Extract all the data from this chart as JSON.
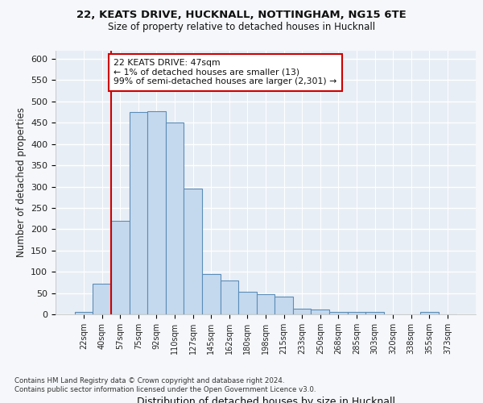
{
  "title1": "22, KEATS DRIVE, HUCKNALL, NOTTINGHAM, NG15 6TE",
  "title2": "Size of property relative to detached houses in Hucknall",
  "xlabel": "Distribution of detached houses by size in Hucknall",
  "ylabel": "Number of detached properties",
  "categories": [
    "22sqm",
    "40sqm",
    "57sqm",
    "75sqm",
    "92sqm",
    "110sqm",
    "127sqm",
    "145sqm",
    "162sqm",
    "180sqm",
    "198sqm",
    "215sqm",
    "233sqm",
    "250sqm",
    "268sqm",
    "285sqm",
    "303sqm",
    "320sqm",
    "338sqm",
    "355sqm",
    "373sqm"
  ],
  "values": [
    5,
    72,
    220,
    475,
    477,
    450,
    295,
    95,
    80,
    53,
    47,
    41,
    13,
    12,
    5,
    5,
    5,
    0,
    0,
    5,
    0
  ],
  "bar_color": "#c5d9ee",
  "bar_edge_color": "#5b8db8",
  "vline_x": 1.5,
  "vline_color": "#cc0000",
  "annotation_text": "22 KEATS DRIVE: 47sqm\n← 1% of detached houses are smaller (13)\n99% of semi-detached houses are larger (2,301) →",
  "annotation_box_color": "#ffffff",
  "annotation_box_edge_color": "#cc0000",
  "ylim": [
    0,
    620
  ],
  "yticks": [
    0,
    50,
    100,
    150,
    200,
    250,
    300,
    350,
    400,
    450,
    500,
    550,
    600
  ],
  "footer_line1": "Contains HM Land Registry data © Crown copyright and database right 2024.",
  "footer_line2": "Contains public sector information licensed under the Open Government Licence v3.0.",
  "fig_bg_color": "#f5f7fa",
  "plot_bg_color": "#e8eef5"
}
